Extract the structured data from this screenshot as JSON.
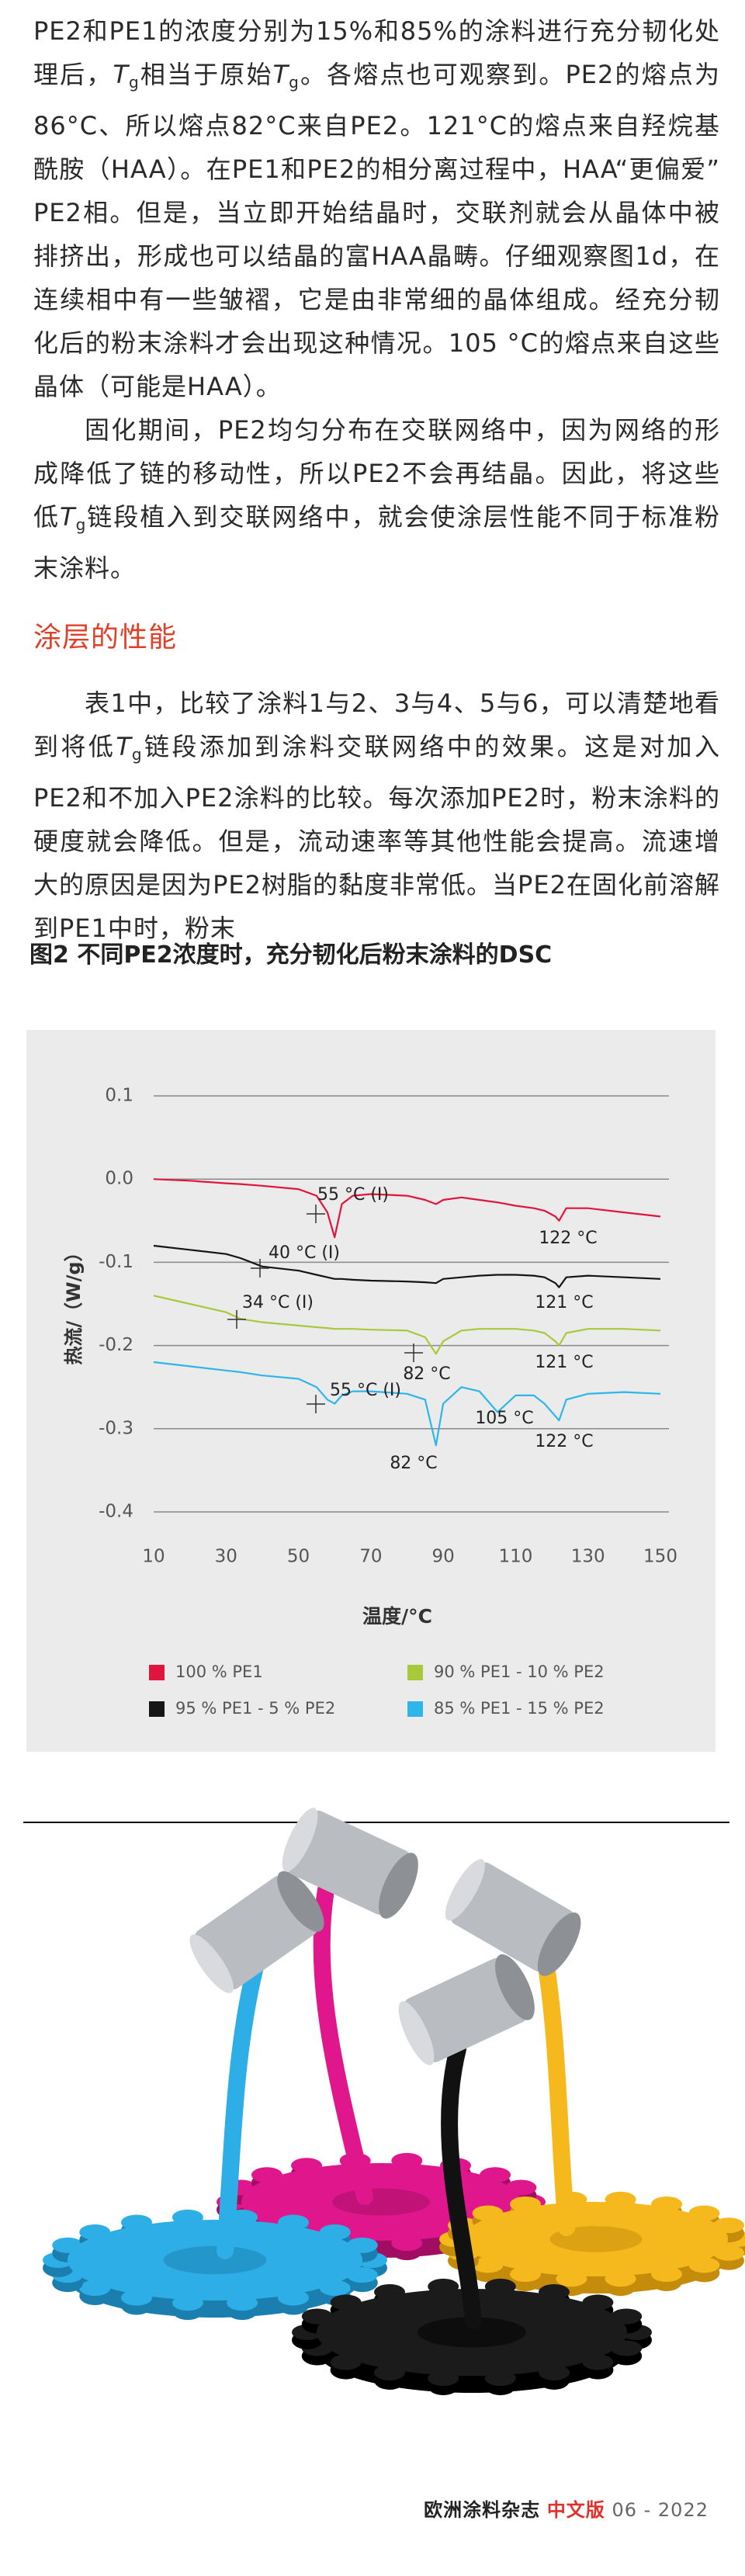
{
  "article": {
    "paragraphs": [
      [
        {
          "text": "PE2和PE1的浓度分别为15%和85%的涂料进行充分韧化处理后，"
        },
        {
          "italic": "T",
          "sub": "g"
        },
        {
          "text": "相当于原始"
        },
        {
          "italic": "T",
          "sub": "g"
        },
        {
          "text": "。各熔点也可观察到。PE2的熔点为86°C、所以熔点82°C来自PE2。121°C的熔点来自羟烷基酰胺（HAA）。在PE1和PE2的相分离过程中，HAA“更偏爱”PE2相。但是，当立即开始结晶时，交联剂就会从晶体中被排挤出，形成也可以结晶的富HAA晶畴。仔细观察图1d，在连续相中有一些皱褶，它是由非常细的晶体组成。经充分韧化后的粉末涂料才会出现这种情况。105 °C的熔点来自这些晶体（可能是HAA）。"
        }
      ],
      [
        {
          "text": "固化期间，PE2均匀分布在交联网络中，因为网络的形成降低了链的移动性，所以PE2不会再结晶。因此，将这些低"
        },
        {
          "italic": "T",
          "sub": "g"
        },
        {
          "text": "链段植入到交联网络中，就会使涂层性能不同于标准粉末涂料。"
        }
      ]
    ],
    "heading": "涂层的性能",
    "paragraphs2": [
      [
        {
          "text": "表1中，比较了涂料1与2、3与4、5与6，可以清楚地看到将低"
        },
        {
          "italic": "T",
          "sub": "g"
        },
        {
          "text": "链段添加到涂料交联网络中的效果。这是对加入PE2和不加入PE2涂料的比较。每次添加PE2时，粉末涂料的硬度就会降低。但是，流动速率等其他性能会提高。流速增大的原因是因为PE2树脂的黏度非常低。当PE2在固化前溶解到PE1中时，粉末"
        }
      ]
    ]
  },
  "figure": {
    "caption": "图2 不同PE2浓度时，充分韧化后粉末涂料的DSC"
  },
  "chart_data": {
    "type": "line",
    "x_label": "温度/°C",
    "y_label": "热流/（W/g）",
    "x": [
      10,
      20,
      30,
      34,
      40,
      50,
      55,
      58,
      60,
      62,
      65,
      70,
      80,
      85,
      88,
      90,
      95,
      100,
      105,
      110,
      115,
      118,
      121,
      122,
      124,
      130,
      140,
      150
    ],
    "series": [
      {
        "name": "100 % PE1",
        "color": "#e0143c",
        "values": [
          0.0,
          -0.002,
          -0.005,
          -0.006,
          -0.008,
          -0.012,
          -0.02,
          -0.04,
          -0.07,
          -0.03,
          -0.02,
          -0.018,
          -0.02,
          -0.025,
          -0.03,
          -0.025,
          -0.022,
          -0.025,
          -0.028,
          -0.032,
          -0.035,
          -0.038,
          -0.045,
          -0.05,
          -0.035,
          -0.035,
          -0.04,
          -0.045
        ]
      },
      {
        "name": "90 % PE1 - 10 % PE2",
        "color": "#a8c93a",
        "values": [
          -0.14,
          -0.15,
          -0.16,
          -0.168,
          -0.172,
          -0.176,
          -0.178,
          -0.179,
          -0.18,
          -0.18,
          -0.18,
          -0.181,
          -0.182,
          -0.19,
          -0.21,
          -0.195,
          -0.182,
          -0.18,
          -0.18,
          -0.18,
          -0.182,
          -0.185,
          -0.195,
          -0.2,
          -0.185,
          -0.18,
          -0.18,
          -0.182
        ]
      },
      {
        "name": "95 % PE1 - 5 % PE2",
        "color": "#151515",
        "values": [
          -0.08,
          -0.085,
          -0.09,
          -0.095,
          -0.105,
          -0.11,
          -0.115,
          -0.118,
          -0.12,
          -0.12,
          -0.121,
          -0.122,
          -0.123,
          -0.124,
          -0.125,
          -0.12,
          -0.118,
          -0.116,
          -0.115,
          -0.115,
          -0.116,
          -0.118,
          -0.125,
          -0.13,
          -0.118,
          -0.116,
          -0.118,
          -0.12
        ]
      },
      {
        "name": "85 % PE1 - 15 % PE2",
        "color": "#2eb5ea",
        "values": [
          -0.22,
          -0.225,
          -0.23,
          -0.232,
          -0.236,
          -0.24,
          -0.25,
          -0.265,
          -0.27,
          -0.26,
          -0.255,
          -0.255,
          -0.258,
          -0.265,
          -0.32,
          -0.27,
          -0.25,
          -0.255,
          -0.28,
          -0.26,
          -0.26,
          -0.27,
          -0.285,
          -0.29,
          -0.265,
          -0.258,
          -0.256,
          -0.258
        ]
      }
    ],
    "annotations": [
      "55 °C (I)",
      "122 °C",
      "40 °C (I)",
      "34 °C (I)",
      "121 °C",
      "82 °C",
      "121 °C",
      "55 °C (I)",
      "105 °C",
      "122 °C",
      "82 °C"
    ],
    "xlim": [
      10,
      150
    ],
    "xticks": [
      10,
      30,
      50,
      70,
      90,
      110,
      130,
      150
    ],
    "ylim": [
      -0.4,
      0.1
    ],
    "yticks": [
      0.1,
      {
        "value": 0,
        "label": "0.0"
      },
      -0.1,
      -0.2,
      -0.3,
      -0.4
    ],
    "grid": true
  },
  "footer": {
    "magazine": "欧洲涂料杂志",
    "edition": "中文版",
    "issue": "06 - 2022"
  }
}
